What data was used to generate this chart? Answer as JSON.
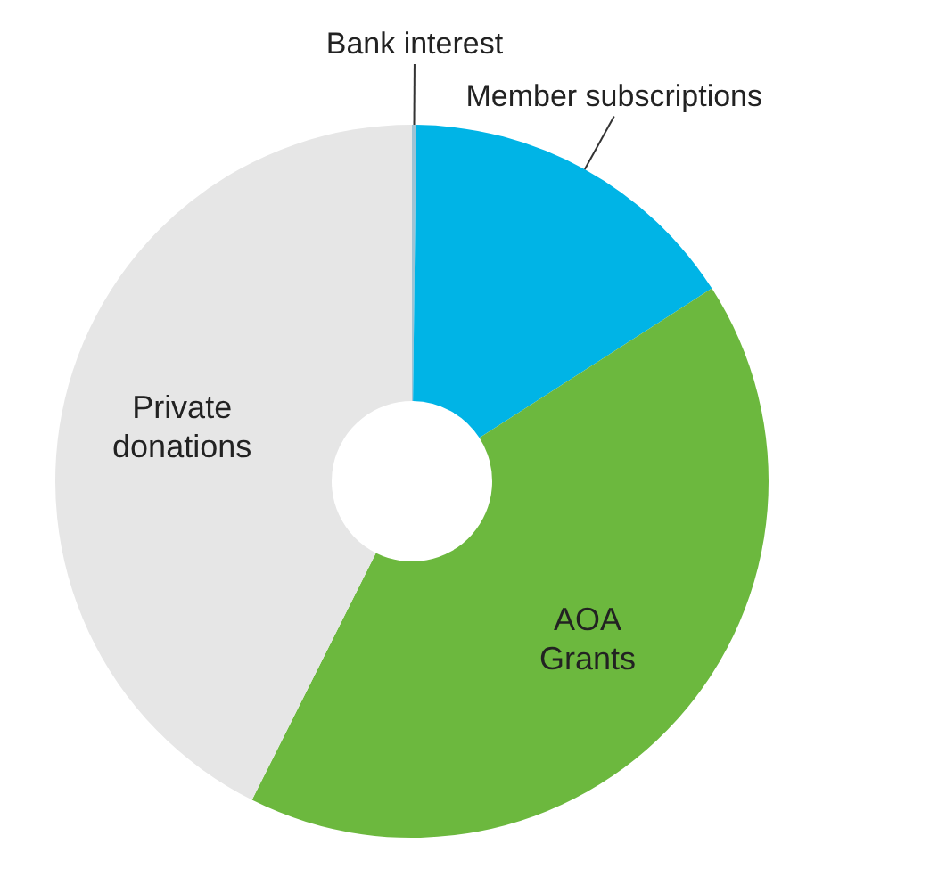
{
  "chart_data": {
    "type": "donut",
    "categories": [
      "Bank interest",
      "Member subscriptions",
      "AOA Grants",
      "Private donations"
    ],
    "values": [
      0.2,
      15.7,
      41.5,
      42.6
    ],
    "colors": [
      "#9fc3d4",
      "#00b4e6",
      "#6cb83e",
      "#e6e6e6"
    ]
  }
}
